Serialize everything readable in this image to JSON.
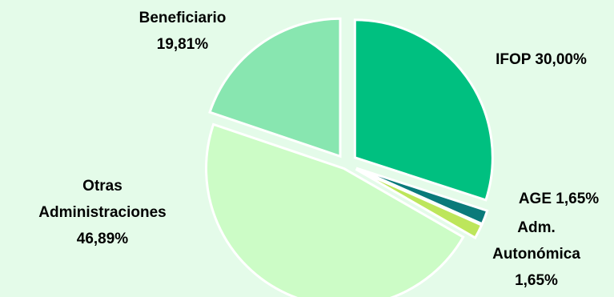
{
  "chart_data": {
    "type": "pie",
    "title": "",
    "series": [
      {
        "values": [
          30.0,
          1.65,
          1.65,
          46.89,
          19.81
        ],
        "labels": [
          "IFOP",
          "AGE",
          "Adm. Autonómica",
          "Otras Administraciones",
          "Beneficiario"
        ]
      }
    ],
    "slices": [
      {
        "name": "IFOP",
        "value": 30.0,
        "color": "#00c080",
        "label_lines": [
          "IFOP 30,00%"
        ]
      },
      {
        "name": "AGE",
        "value": 1.65,
        "color": "#0a7a7a",
        "label_lines": [
          "AGE 1,65%"
        ]
      },
      {
        "name": "Adm. Autonómica",
        "value": 1.65,
        "color": "#bde65b",
        "label_lines": [
          "Adm.",
          "Autonómica",
          "1,65%"
        ]
      },
      {
        "name": "Otras Administraciones",
        "value": 46.89,
        "color": "#ccfcc6",
        "label_lines": [
          "Otras",
          "Administraciones",
          "46,89%"
        ]
      },
      {
        "name": "Beneficiario",
        "value": 19.81,
        "color": "#88e6b0",
        "label_lines": [
          "Beneficiario",
          "19,81%"
        ]
      }
    ],
    "start_angle_deg": 0,
    "direction": "clockwise",
    "exploded": true,
    "legend": "none"
  }
}
